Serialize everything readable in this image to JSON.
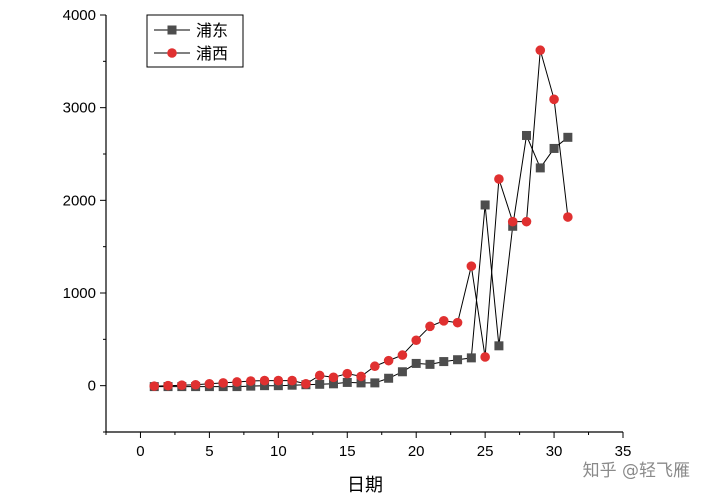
{
  "chart_data": {
    "type": "line",
    "xlabel": "日期",
    "ylabel": "",
    "xlim": [
      -2.5,
      35
    ],
    "ylim": [
      -500,
      4000
    ],
    "xticks": [
      0,
      5,
      10,
      15,
      20,
      25,
      30,
      35
    ],
    "yticks": [
      0,
      1000,
      2000,
      3000,
      4000
    ],
    "legend_position": "top-left",
    "series": [
      {
        "name": "浦东",
        "color": "#4d4d4d",
        "marker": "square",
        "x": [
          1,
          2,
          3,
          4,
          5,
          6,
          7,
          8,
          9,
          10,
          11,
          12,
          13,
          14,
          15,
          16,
          17,
          18,
          19,
          20,
          21,
          22,
          23,
          24,
          25,
          26,
          27,
          28,
          29,
          30,
          31
        ],
        "y": [
          -10,
          -10,
          -10,
          -10,
          -10,
          -10,
          -10,
          -5,
          0,
          0,
          5,
          10,
          15,
          20,
          35,
          30,
          30,
          80,
          150,
          240,
          230,
          260,
          280,
          300,
          1950,
          430,
          1720,
          2700,
          2350,
          2560,
          2680
        ]
      },
      {
        "name": "浦西",
        "color": "#e03030",
        "marker": "circle",
        "x": [
          1,
          2,
          3,
          4,
          5,
          6,
          7,
          8,
          9,
          10,
          11,
          12,
          13,
          14,
          15,
          16,
          17,
          18,
          19,
          20,
          21,
          22,
          23,
          24,
          25,
          26,
          27,
          28,
          29,
          30,
          31
        ],
        "y": [
          -5,
          0,
          5,
          10,
          20,
          30,
          40,
          50,
          55,
          55,
          55,
          20,
          110,
          90,
          130,
          100,
          210,
          270,
          330,
          490,
          640,
          700,
          680,
          1290,
          310,
          2230,
          1770,
          1770,
          3620,
          3090,
          1820
        ]
      }
    ]
  },
  "watermark": "知乎 @轻飞雁"
}
